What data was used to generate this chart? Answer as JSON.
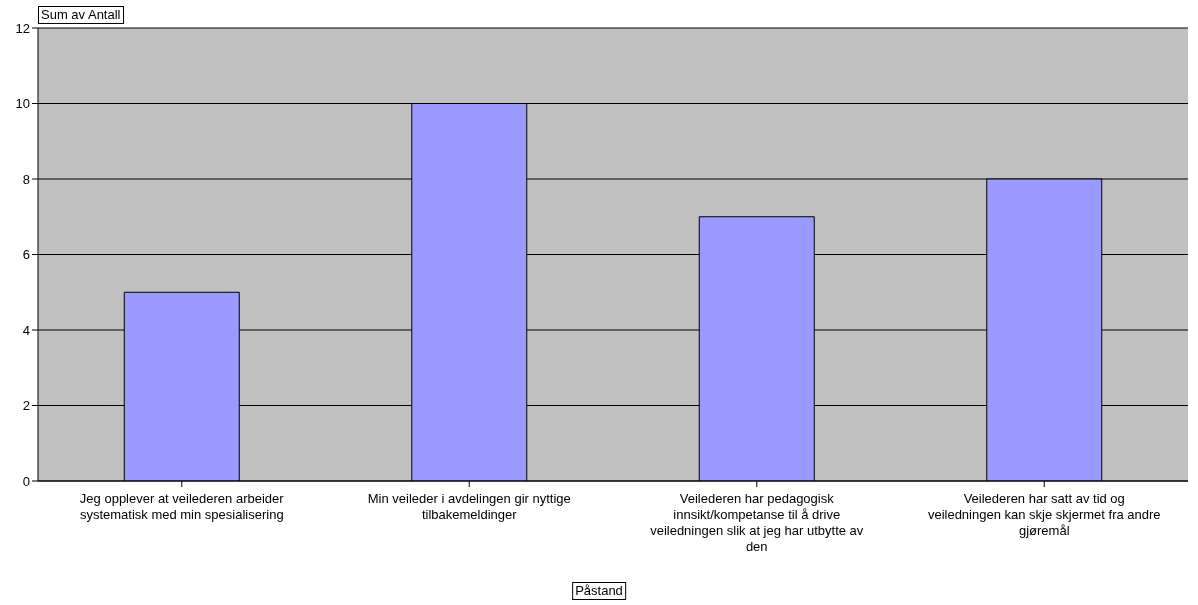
{
  "chart_data": {
    "type": "bar",
    "ylabel": "Sum av Antall",
    "xlabel": "Påstand",
    "categories": [
      "Jeg opplever at veilederen arbeider systematisk med min spesialisering",
      "Min veileder i avdelingen gir nyttige tilbakemeldinger",
      "Veilederen har pedagogisk innsikt/kompetanse til å drive veiledningen slik at jeg har utbytte av den",
      "Veilederen har satt av tid og veiledningen kan skje skjermet fra andre gjøremål"
    ],
    "values": [
      5,
      10,
      7,
      8
    ],
    "color": "#9999ff",
    "ylim": [
      0,
      12
    ],
    "yticks": [
      0,
      2,
      4,
      6,
      8,
      10,
      12
    ],
    "grid": "y"
  }
}
